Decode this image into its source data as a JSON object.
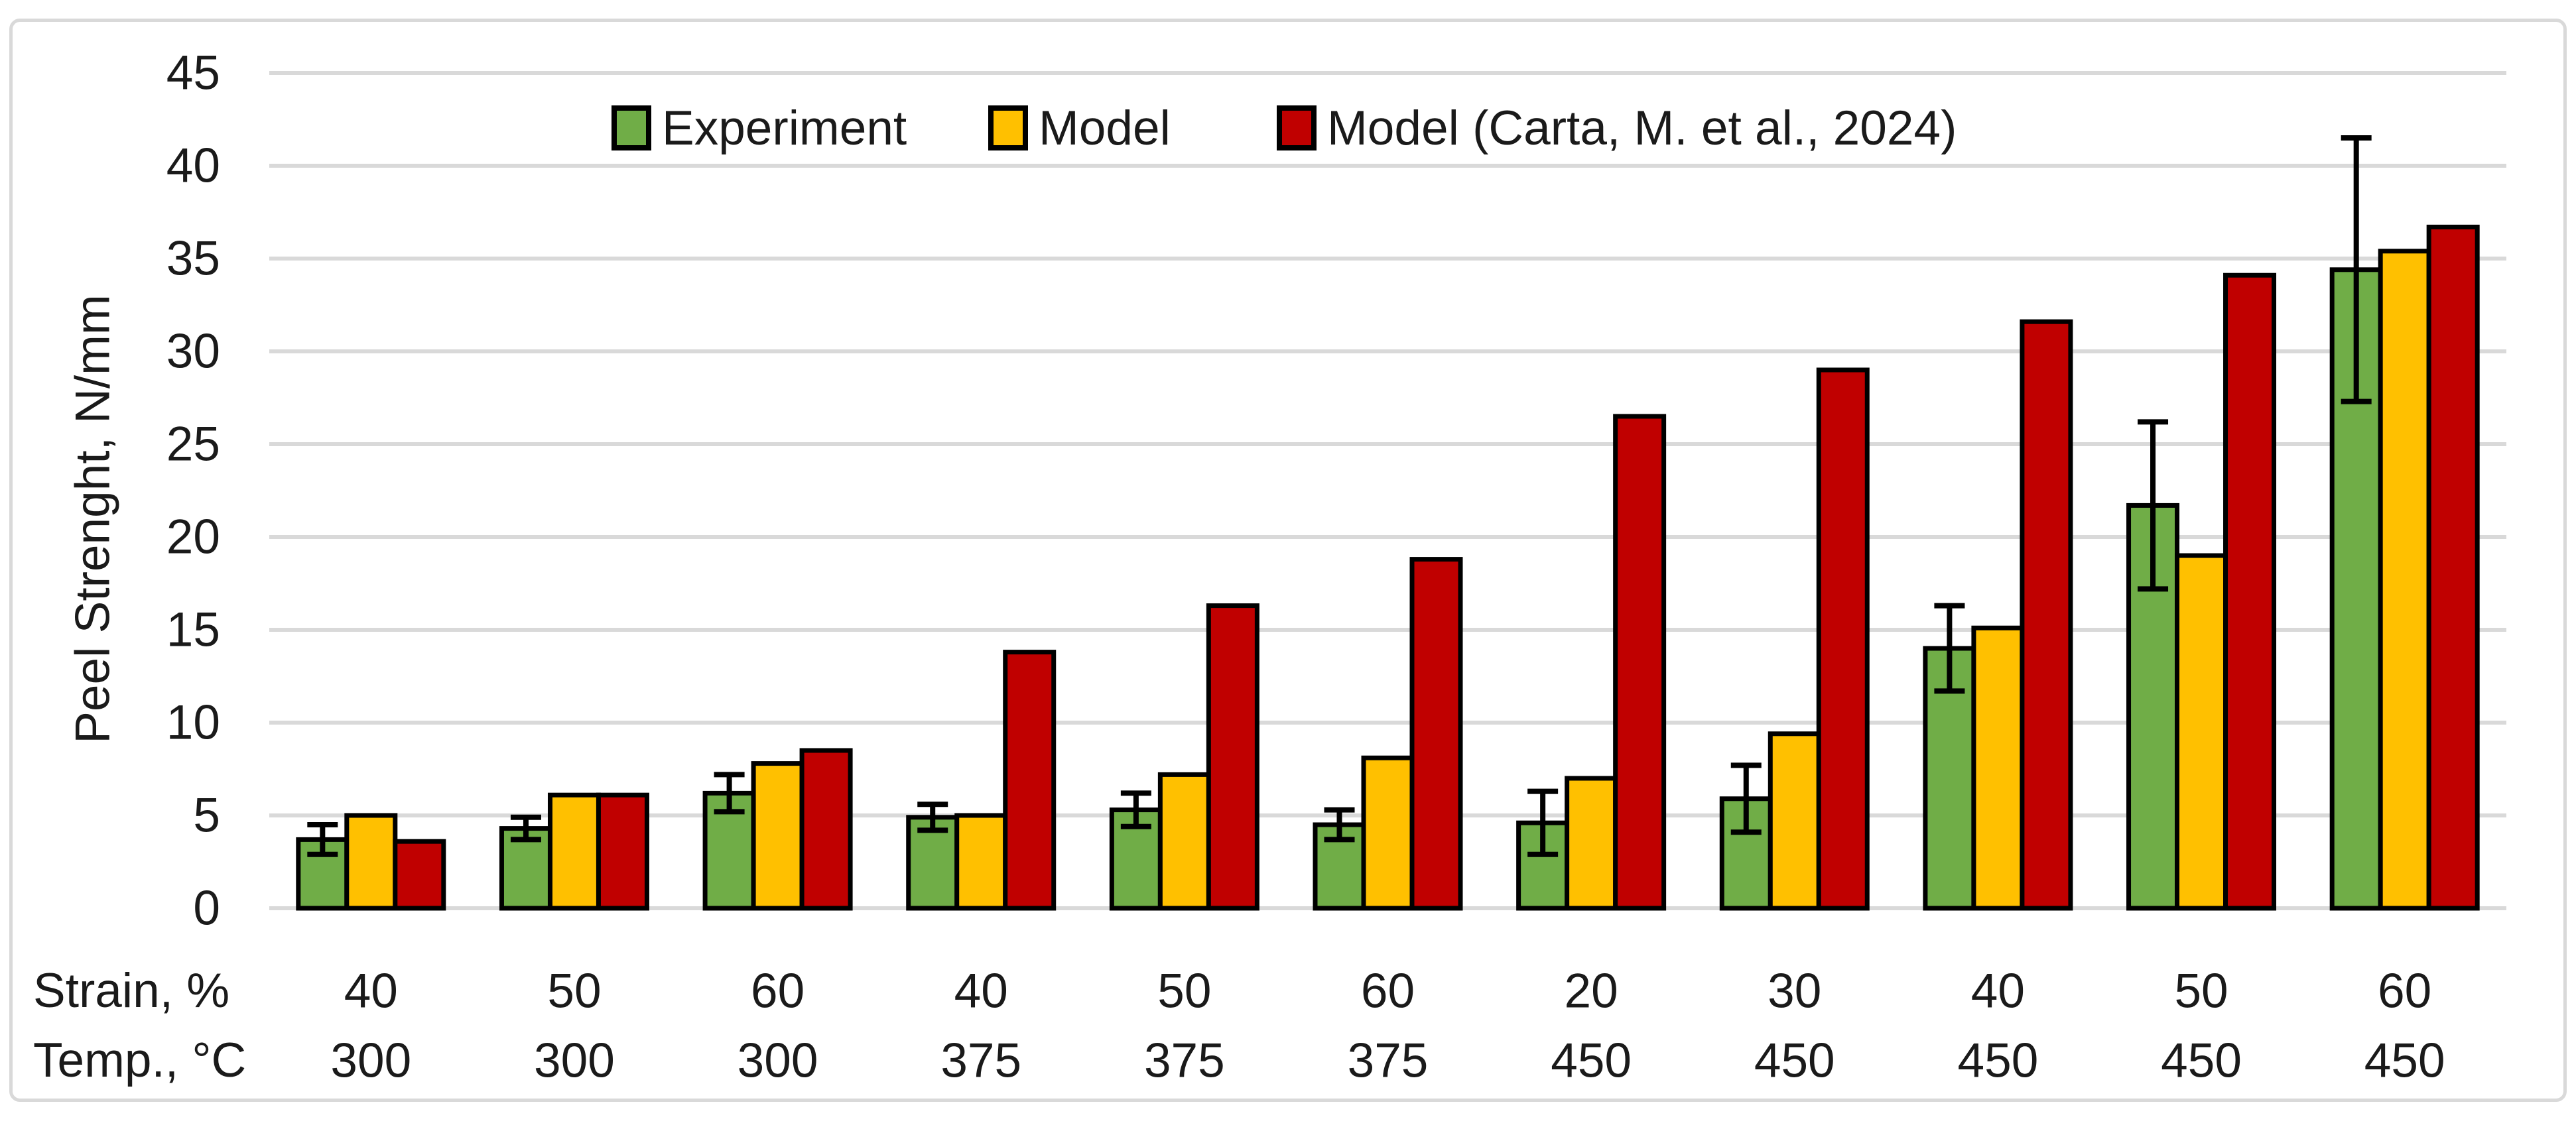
{
  "figure": {
    "background": "#FFFFFF",
    "border_color": "#D9D9D9"
  },
  "chart_data": {
    "type": "bar",
    "title": "",
    "ylabel": "Peel Strenght, N/mm",
    "ylim": [
      0,
      45
    ],
    "ytick_step": 5,
    "grid": true,
    "legend_position": "top",
    "colors": {
      "grid": "#D9D9D9",
      "bar_outline": "#000000",
      "error_bar": "#000000",
      "text": "#1A1A1A"
    },
    "x_axis_rows": [
      {
        "label": "Strain, %",
        "values": [
          "40",
          "50",
          "60",
          "40",
          "50",
          "60",
          "20",
          "30",
          "40",
          "50",
          "60"
        ]
      },
      {
        "label": "Temp., °C",
        "values": [
          "300",
          "300",
          "300",
          "375",
          "375",
          "375",
          "450",
          "450",
          "450",
          "450",
          "450"
        ]
      }
    ],
    "series": [
      {
        "name": "Experiment",
        "color": "#70AD47",
        "values": [
          3.7,
          4.3,
          6.2,
          4.9,
          5.3,
          4.5,
          4.6,
          5.9,
          14.0,
          21.7,
          34.4
        ],
        "error": [
          0.8,
          0.6,
          1.0,
          0.7,
          0.9,
          0.8,
          1.7,
          1.8,
          2.3,
          4.5,
          7.1
        ]
      },
      {
        "name": "Model",
        "color": "#FFC000",
        "values": [
          5.0,
          6.1,
          7.8,
          5.0,
          7.2,
          8.1,
          7.0,
          9.4,
          15.1,
          19.0,
          35.4
        ]
      },
      {
        "name": "Model (Carta, M. et al., 2024)",
        "color": "#C00000",
        "values": [
          3.6,
          6.1,
          8.5,
          13.8,
          16.3,
          18.8,
          26.5,
          29.0,
          31.6,
          34.1,
          36.7
        ]
      }
    ]
  }
}
